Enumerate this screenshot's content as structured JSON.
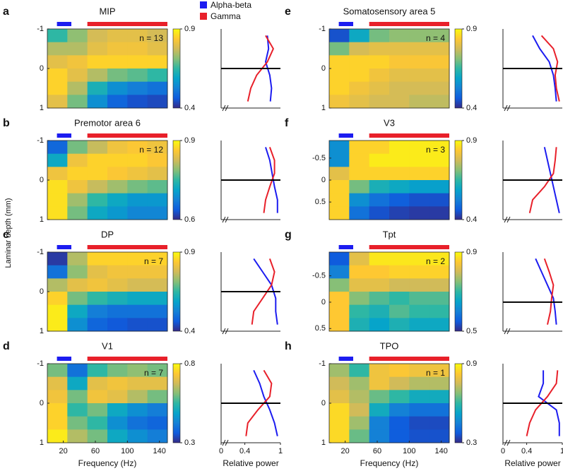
{
  "y_label": "Laminar depth (mm)",
  "legend": [
    {
      "name": "Alpha-beta",
      "color": "#1c1cf0",
      "range": [
        12,
        30
      ]
    },
    {
      "name": "Gamma",
      "color": "#e8202a",
      "range": [
        50,
        150
      ]
    }
  ],
  "frequencies": [
    12.5,
    37.5,
    62.5,
    87.5,
    112.5,
    137.5
  ],
  "chart_data": [
    {
      "type": "heatmap",
      "letter": "a",
      "title": "MIP",
      "annotation": "n = 13",
      "xlim": [
        0,
        150
      ],
      "ylim": [
        -1,
        1
      ],
      "yticks": [
        -1,
        0,
        1
      ],
      "clim": [
        0.4,
        0.9
      ],
      "cticks": [
        0.4,
        0.9
      ],
      "depths": [
        -0.833,
        -0.5,
        -0.167,
        0.167,
        0.5,
        0.833
      ],
      "z": [
        [
          0.65,
          0.72,
          0.78,
          0.8,
          0.8,
          0.78
        ],
        [
          0.75,
          0.75,
          0.8,
          0.82,
          0.82,
          0.8
        ],
        [
          0.8,
          0.82,
          0.85,
          0.85,
          0.85,
          0.85
        ],
        [
          0.85,
          0.8,
          0.75,
          0.7,
          0.68,
          0.65
        ],
        [
          0.85,
          0.75,
          0.62,
          0.55,
          0.52,
          0.5
        ],
        [
          0.8,
          0.7,
          0.55,
          0.48,
          0.45,
          0.44
        ]
      ],
      "profile": {
        "xlim": [
          0,
          1
        ],
        "alpha_beta": [
          0.78,
          0.8,
          0.75,
          0.82,
          0.85,
          0.83
        ],
        "gamma": [
          0.75,
          0.88,
          0.78,
          0.6,
          0.5,
          0.45
        ]
      }
    },
    {
      "type": "heatmap",
      "letter": "b",
      "title": "Premotor area 6",
      "annotation": "n = 12",
      "xlim": [
        0,
        150
      ],
      "ylim": [
        -1,
        1
      ],
      "yticks": [
        -1,
        0,
        1
      ],
      "clim": [
        0.6,
        0.9
      ],
      "cticks": [
        0.6,
        0.9
      ],
      "depths": [
        -0.833,
        -0.5,
        -0.167,
        0.167,
        0.5,
        0.833
      ],
      "z": [
        [
          0.65,
          0.78,
          0.82,
          0.85,
          0.86,
          0.85
        ],
        [
          0.72,
          0.85,
          0.87,
          0.87,
          0.87,
          0.86
        ],
        [
          0.85,
          0.87,
          0.87,
          0.86,
          0.85,
          0.84
        ],
        [
          0.88,
          0.85,
          0.82,
          0.8,
          0.78,
          0.77
        ],
        [
          0.88,
          0.8,
          0.75,
          0.72,
          0.7,
          0.7
        ],
        [
          0.88,
          0.78,
          0.72,
          0.7,
          0.68,
          0.68
        ]
      ],
      "profile": {
        "xlim": [
          0,
          1
        ],
        "alpha_beta": [
          0.75,
          0.82,
          0.86,
          0.9,
          0.95,
          0.95
        ],
        "gamma": [
          0.82,
          0.9,
          0.9,
          0.82,
          0.75,
          0.72
        ]
      }
    },
    {
      "type": "heatmap",
      "letter": "c",
      "title": "DP",
      "annotation": "n = 7",
      "xlim": [
        0,
        150
      ],
      "ylim": [
        -1,
        1
      ],
      "yticks": [
        -1,
        0,
        1
      ],
      "clim": [
        0.4,
        0.9
      ],
      "cticks": [
        0.4,
        0.9
      ],
      "depths": [
        -0.833,
        -0.5,
        -0.167,
        0.167,
        0.5,
        0.833
      ],
      "z": [
        [
          0.42,
          0.75,
          0.85,
          0.85,
          0.85,
          0.85
        ],
        [
          0.5,
          0.72,
          0.8,
          0.82,
          0.82,
          0.82
        ],
        [
          0.75,
          0.8,
          0.82,
          0.8,
          0.78,
          0.78
        ],
        [
          0.85,
          0.7,
          0.65,
          0.62,
          0.6,
          0.6
        ],
        [
          0.88,
          0.6,
          0.52,
          0.5,
          0.5,
          0.5
        ],
        [
          0.88,
          0.55,
          0.48,
          0.46,
          0.45,
          0.45
        ]
      ],
      "profile": {
        "xlim": [
          0,
          1
        ],
        "alpha_beta": [
          0.55,
          0.7,
          0.85,
          0.92,
          0.92,
          0.95
        ],
        "gamma": [
          0.82,
          0.9,
          0.85,
          0.7,
          0.55,
          0.52
        ]
      }
    },
    {
      "type": "heatmap",
      "letter": "d",
      "title": "V1",
      "annotation": "n = 7",
      "xlim": [
        0,
        150
      ],
      "ylim": [
        -1,
        1
      ],
      "yticks": [
        -1,
        0,
        1
      ],
      "clim": [
        0.3,
        0.8
      ],
      "cticks": [
        0.3,
        0.8
      ],
      "xticks": [
        20,
        60,
        100,
        140
      ],
      "xlabel": "Frequency (Hz)",
      "depths": [
        -0.833,
        -0.5,
        -0.167,
        0.167,
        0.5,
        0.833
      ],
      "z": [
        [
          0.6,
          0.4,
          0.55,
          0.6,
          0.62,
          0.6
        ],
        [
          0.7,
          0.5,
          0.7,
          0.72,
          0.7,
          0.7
        ],
        [
          0.72,
          0.6,
          0.72,
          0.7,
          0.65,
          0.6
        ],
        [
          0.75,
          0.55,
          0.6,
          0.5,
          0.45,
          0.42
        ],
        [
          0.75,
          0.6,
          0.55,
          0.45,
          0.4,
          0.38
        ],
        [
          0.78,
          0.65,
          0.6,
          0.5,
          0.45,
          0.42
        ]
      ],
      "profile": {
        "xlim": [
          0,
          1
        ],
        "xticks": [
          0,
          0.4,
          1
        ],
        "xlabel": "Relative power",
        "alpha_beta": [
          0.55,
          0.65,
          0.72,
          0.82,
          0.9,
          0.95
        ],
        "gamma": [
          0.72,
          0.85,
          0.82,
          0.62,
          0.45,
          0.42
        ]
      }
    },
    {
      "type": "heatmap",
      "letter": "e",
      "title": "Somatosensory area 5",
      "annotation": "n = 4",
      "xlim": [
        0,
        150
      ],
      "ylim": [
        -1,
        1
      ],
      "yticks": [
        -1,
        0,
        1
      ],
      "clim": [
        0.4,
        0.9
      ],
      "cticks": [
        0.4,
        0.9
      ],
      "depths": [
        -0.833,
        -0.5,
        -0.167,
        0.167,
        0.5,
        0.833
      ],
      "z": [
        [
          0.45,
          0.6,
          0.7,
          0.72,
          0.72,
          0.72
        ],
        [
          0.7,
          0.78,
          0.8,
          0.8,
          0.8,
          0.8
        ],
        [
          0.85,
          0.85,
          0.85,
          0.83,
          0.83,
          0.83
        ],
        [
          0.85,
          0.85,
          0.82,
          0.8,
          0.8,
          0.8
        ],
        [
          0.85,
          0.82,
          0.8,
          0.78,
          0.78,
          0.78
        ],
        [
          0.82,
          0.8,
          0.78,
          0.78,
          0.76,
          0.76
        ]
      ],
      "profile": {
        "xlim": [
          0,
          1
        ],
        "alpha_beta": [
          0.5,
          0.62,
          0.78,
          0.85,
          0.88,
          0.9
        ],
        "gamma": [
          0.65,
          0.85,
          0.92,
          0.88,
          0.9,
          0.95
        ]
      }
    },
    {
      "type": "heatmap",
      "letter": "f",
      "title": "V3",
      "annotation": "n = 3",
      "xlim": [
        0,
        150
      ],
      "ylim": [
        -0.9,
        0.9
      ],
      "yticks": [
        -0.5,
        0,
        0.5
      ],
      "clim": [
        0.4,
        0.9
      ],
      "cticks": [
        0.4,
        0.9
      ],
      "depths": [
        -0.75,
        -0.45,
        -0.15,
        0.15,
        0.45,
        0.75
      ],
      "z": [
        [
          0.55,
          0.85,
          0.85,
          0.88,
          0.88,
          0.88
        ],
        [
          0.55,
          0.85,
          0.88,
          0.88,
          0.88,
          0.88
        ],
        [
          0.8,
          0.85,
          0.85,
          0.85,
          0.85,
          0.85
        ],
        [
          0.85,
          0.7,
          0.62,
          0.6,
          0.58,
          0.58
        ],
        [
          0.85,
          0.55,
          0.5,
          0.47,
          0.45,
          0.45
        ],
        [
          0.85,
          0.5,
          0.45,
          0.43,
          0.42,
          0.42
        ]
      ],
      "profile": {
        "xlim": [
          0,
          1
        ],
        "alpha_beta": [
          0.7,
          0.75,
          0.8,
          0.85,
          0.9,
          0.95
        ],
        "gamma": [
          0.9,
          0.88,
          0.85,
          0.7,
          0.5,
          0.45
        ]
      }
    },
    {
      "type": "heatmap",
      "letter": "g",
      "title": "Tpt",
      "annotation": "n = 2",
      "xlim": [
        0,
        150
      ],
      "ylim": [
        -0.95,
        0.55
      ],
      "yticks": [
        -0.5,
        0,
        0.5
      ],
      "clim": [
        0.5,
        0.9
      ],
      "cticks": [
        0.5,
        0.9
      ],
      "depths": [
        -0.825,
        -0.575,
        -0.325,
        -0.075,
        0.175,
        0.425
      ],
      "z": [
        [
          0.55,
          0.82,
          0.88,
          0.88,
          0.88,
          0.88
        ],
        [
          0.6,
          0.85,
          0.85,
          0.86,
          0.86,
          0.86
        ],
        [
          0.75,
          0.82,
          0.82,
          0.8,
          0.8,
          0.8
        ],
        [
          0.85,
          0.75,
          0.72,
          0.7,
          0.72,
          0.72
        ],
        [
          0.85,
          0.7,
          0.68,
          0.72,
          0.7,
          0.7
        ],
        [
          0.85,
          0.68,
          0.65,
          0.68,
          0.66,
          0.66
        ]
      ],
      "profile": {
        "xlim": [
          0,
          1
        ],
        "alpha_beta": [
          0.55,
          0.65,
          0.75,
          0.85,
          0.88,
          0.9
        ],
        "gamma": [
          0.7,
          0.78,
          0.85,
          0.82,
          0.8,
          0.75
        ]
      }
    },
    {
      "type": "heatmap",
      "letter": "h",
      "title": "TPO",
      "annotation": "n = 1",
      "xlim": [
        0,
        150
      ],
      "ylim": [
        -1,
        1
      ],
      "yticks": [
        -1,
        0,
        1
      ],
      "clim": [
        0.3,
        0.9
      ],
      "cticks": [
        0.3,
        0.9
      ],
      "xticks": [
        20,
        60,
        100,
        140
      ],
      "xlabel": "Frequency (Hz)",
      "depths": [
        -0.833,
        -0.5,
        -0.167,
        0.167,
        0.5,
        0.833
      ],
      "z": [
        [
          0.7,
          0.6,
          0.8,
          0.82,
          0.8,
          0.8
        ],
        [
          0.75,
          0.7,
          0.8,
          0.75,
          0.72,
          0.72
        ],
        [
          0.78,
          0.72,
          0.65,
          0.6,
          0.55,
          0.55
        ],
        [
          0.85,
          0.75,
          0.55,
          0.45,
          0.42,
          0.42
        ],
        [
          0.85,
          0.7,
          0.45,
          0.38,
          0.35,
          0.35
        ],
        [
          0.85,
          0.65,
          0.45,
          0.38,
          0.36,
          0.36
        ]
      ],
      "profile": {
        "xlim": [
          0,
          1
        ],
        "xticks": [
          0,
          0.4,
          1
        ],
        "xlabel": "Relative power",
        "alpha_beta": [
          0.68,
          0.68,
          0.6,
          0.9,
          0.95,
          0.95
        ],
        "gamma": [
          0.92,
          0.9,
          0.75,
          0.55,
          0.45,
          0.4
        ]
      }
    }
  ]
}
